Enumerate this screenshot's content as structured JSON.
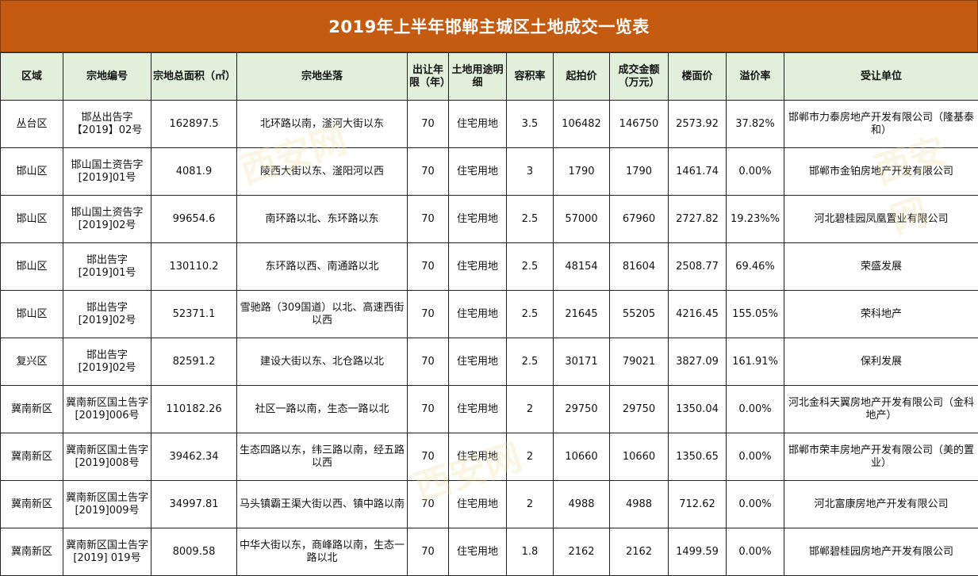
{
  "title": "2019年上半年邯郸主城区土地成交一览表",
  "headers": [
    "区域",
    "宗地编号",
    "宗地总面积（㎡）",
    "宗地坐落",
    "出让年限（年）",
    "土地用途明细",
    "容积率",
    "起拍价",
    "成交金额（万元）",
    "楼面价",
    "溢价率",
    "受让单位"
  ],
  "rows": [
    {
      "region": "丛台区",
      "code": "邯丛出告字【2019】02号",
      "area": "162897.5",
      "location": "北环路以南，滏河大街以东",
      "years": "70",
      "use": "住宅用地",
      "far": "3.5",
      "start_price": "106482",
      "deal": "146750",
      "floor_price": "2573.92",
      "premium": "37.82%",
      "buyer": "邯郸市力泰房地产开发有限公司（隆基泰和）"
    },
    {
      "region": "邯山区",
      "code": "邯山国土资告字[2019]01号",
      "area": "4081.9",
      "location": "陵西大街以东、滏阳河以西",
      "years": "70",
      "use": "住宅用地",
      "far": "3",
      "start_price": "1790",
      "deal": "1790",
      "floor_price": "1461.74",
      "premium": "0.00%",
      "buyer": "邯郸市金铂房地产开发有限公司"
    },
    {
      "region": "邯山区",
      "code": "邯山国土资告字[2019]02号",
      "area": "99654.6",
      "location": "南环路以北、东环路以东",
      "years": "70",
      "use": "住宅用地",
      "far": "2.5",
      "start_price": "57000",
      "deal": "67960",
      "floor_price": "2727.82",
      "premium": "19.23%%",
      "buyer": "河北碧桂园凤凰置业有限公司"
    },
    {
      "region": "邯山区",
      "code": "邯出告字[2019]01号",
      "area": "130110.2",
      "location": "东环路以西、南通路以北",
      "years": "70",
      "use": "住宅用地",
      "far": "2.5",
      "start_price": "48154",
      "deal": "81604",
      "floor_price": "2508.77",
      "premium": "69.46%",
      "buyer": "荣盛发展"
    },
    {
      "region": "邯山区",
      "code": "邯出告字[2019]02号",
      "area": "52371.1",
      "location": "雪驰路（309国道）以北、高速西街以西",
      "years": "70",
      "use": "住宅用地",
      "far": "2.5",
      "start_price": "21645",
      "deal": "55205",
      "floor_price": "4216.45",
      "premium": "155.05%",
      "buyer": "荣科地产"
    },
    {
      "region": "复兴区",
      "code": "邯出告字[2019]02号",
      "area": "82591.2",
      "location": "建设大街以东、北仓路以北",
      "years": "70",
      "use": "住宅用地",
      "far": "2.5",
      "start_price": "30171",
      "deal": "79021",
      "floor_price": "3827.09",
      "premium": "161.91%",
      "buyer": "保利发展"
    },
    {
      "region": "冀南新区",
      "code": "冀南新区国土告字[2019]006号",
      "area": "110182.26",
      "location": "社区一路以南，生态一路以北",
      "years": "70",
      "use": "住宅用地",
      "far": "2",
      "start_price": "29750",
      "deal": "29750",
      "floor_price": "1350.04",
      "premium": "0.00%",
      "buyer": "河北金科天翼房地产开发有限公司（金科地产）"
    },
    {
      "region": "冀南新区",
      "code": "冀南新区国土告字[2019]008号",
      "area": "39462.34",
      "location": "生态四路以东，纬三路以南，经五路以西",
      "years": "70",
      "use": "住宅用地",
      "far": "2",
      "start_price": "10660",
      "deal": "10660",
      "floor_price": "1350.65",
      "premium": "0.00%",
      "buyer": "邯郸市荣丰房地产开发有限公司（美的置业）"
    },
    {
      "region": "冀南新区",
      "code": "冀南新区国土告字[2019]009号",
      "area": "34997.81",
      "location": "马头镇霸王渠大街以西、镇中路以南",
      "years": "70",
      "use": "住宅用地",
      "far": "2",
      "start_price": "4988",
      "deal": "4988",
      "floor_price": "712.62",
      "premium": "0.00%",
      "buyer": "河北富康房地产开发有限公司"
    },
    {
      "region": "冀南新区",
      "code": "冀南新区国土告字[2019] 019号",
      "area": "8009.58",
      "location": "中华大街以东，商峰路以南，生态一路以北",
      "years": "70",
      "use": "住宅用地",
      "far": "1.8",
      "start_price": "2162",
      "deal": "2162",
      "floor_price": "1499.59",
      "premium": "0.00%",
      "buyer": "邯郸碧桂园房地产开发有限公司"
    }
  ],
  "watermark": "西安网"
}
